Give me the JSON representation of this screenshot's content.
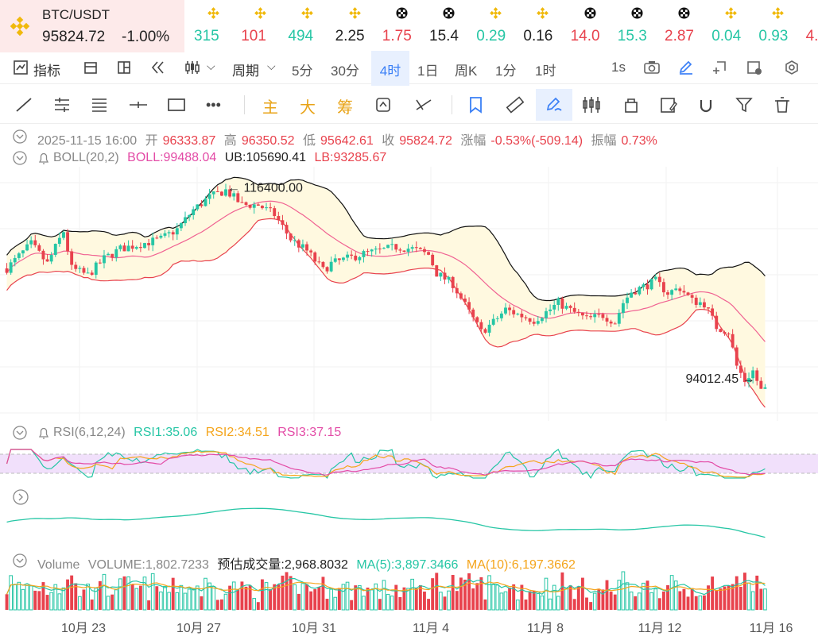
{
  "pair": {
    "name": "BTC/USDT",
    "price": "95824.72",
    "change": "-1.00%"
  },
  "ticker": [
    {
      "icon": "bnb-icon",
      "value": "315",
      "color": "#26c6a5"
    },
    {
      "icon": "bnb-icon",
      "value": "101",
      "color": "#e8424d"
    },
    {
      "icon": "bnb-icon",
      "value": "494",
      "color": "#26c6a5"
    },
    {
      "icon": "bnb-icon",
      "value": "2.25",
      "color": "#222222"
    },
    {
      "icon": "okx-icon",
      "value": "1.75",
      "color": "#e8424d"
    },
    {
      "icon": "okx-icon",
      "value": "15.4",
      "color": "#222222"
    },
    {
      "icon": "bnb-icon",
      "value": "0.29",
      "color": "#26c6a5"
    },
    {
      "icon": "bnb-icon",
      "value": "0.16",
      "color": "#222222"
    },
    {
      "icon": "okx-icon",
      "value": "14.0",
      "color": "#e8424d"
    },
    {
      "icon": "okx-icon",
      "value": "15.3",
      "color": "#26c6a5"
    },
    {
      "icon": "okx-icon",
      "value": "2.87",
      "color": "#e8424d"
    },
    {
      "icon": "bnb-icon",
      "value": "0.04",
      "color": "#26c6a5"
    },
    {
      "icon": "bnb-icon",
      "value": "0.93",
      "color": "#26c6a5"
    },
    {
      "icon": "bnb-icon",
      "value": "4.",
      "color": "#e8424d"
    }
  ],
  "toolbar": {
    "indicators": "指标",
    "period": "周期",
    "intervals": [
      "5分",
      "30分",
      "4时",
      "1日",
      "周K",
      "1分",
      "1时"
    ],
    "active_interval": "4时",
    "refresh": "1s"
  },
  "drawtools": {
    "main": "主",
    "big": "大",
    "chips": "筹"
  },
  "ohlc": {
    "time": "2025-11-15 16:00",
    "open_label": "开",
    "open": "96333.87",
    "high_label": "高",
    "high": "96350.52",
    "low_label": "低",
    "low": "95642.61",
    "close_label": "收",
    "close": "95824.72",
    "chg_label": "涨幅",
    "chg": "-0.53%(-509.14)",
    "amp_label": "振幅",
    "amp": "0.73%"
  },
  "boll": {
    "label": "BOLL(20,2)",
    "boll": "BOLL:99488.04",
    "ub": "UB:105690.41",
    "lb": "LB:93285.67"
  },
  "rsi": {
    "label": "RSI(6,12,24)",
    "rsi1": "RSI1:35.06",
    "rsi2": "RSI2:34.51",
    "rsi3": "RSI3:37.15"
  },
  "volume": {
    "label": "Volume",
    "vol": "VOLUME:1,802.7233",
    "est": "预估成交量:2,968.8032",
    "ma5": "MA(5):3,897.3466",
    "ma10": "MA(10):6,197.3662"
  },
  "colors": {
    "up": "#26c6a5",
    "down": "#e8424d",
    "boll_mid": "#f06292",
    "boll_upper": "#111111",
    "band_fill": "#fff9e0",
    "rsi1": "#26c6a5",
    "rsi2": "#f4a51c",
    "rsi3": "#e34ba6",
    "accent": "#3a7ff6"
  },
  "chart_data": {
    "type": "candlestick",
    "interval": "4时",
    "date_from": "2025-10-20",
    "date_to": "2025-11-15 16:00",
    "x_ticks": [
      "10月 23",
      "10月 27",
      "10月 31",
      "11月 4",
      "11月 8",
      "11月 12",
      "11月 16"
    ],
    "annotations": [
      {
        "text": "116400.00",
        "role": "period high"
      },
      {
        "text": "94012.45",
        "role": "period low"
      }
    ],
    "price_path": [
      [
        0,
        108000
      ],
      [
        6,
        110500
      ],
      [
        10,
        108500
      ],
      [
        14,
        111800
      ],
      [
        16,
        108000
      ],
      [
        20,
        107300
      ],
      [
        24,
        109000
      ],
      [
        28,
        110000
      ],
      [
        33,
        110500
      ],
      [
        38,
        111000
      ],
      [
        42,
        112000
      ],
      [
        46,
        114000
      ],
      [
        50,
        115300
      ],
      [
        54,
        116000
      ],
      [
        58,
        114500
      ],
      [
        62,
        114500
      ],
      [
        66,
        113500
      ],
      [
        70,
        111000
      ],
      [
        74,
        109800
      ],
      [
        78,
        107800
      ],
      [
        80,
        108500
      ],
      [
        84,
        109000
      ],
      [
        88,
        109500
      ],
      [
        93,
        109900
      ],
      [
        96,
        110200
      ],
      [
        100,
        110000
      ],
      [
        104,
        109400
      ],
      [
        106,
        107500
      ],
      [
        110,
        106400
      ],
      [
        114,
        103500
      ],
      [
        117,
        101500
      ],
      [
        120,
        102500
      ],
      [
        123,
        103800
      ],
      [
        126,
        103300
      ],
      [
        130,
        102700
      ],
      [
        134,
        103800
      ],
      [
        136,
        104500
      ],
      [
        139,
        103700
      ],
      [
        143,
        102800
      ],
      [
        147,
        103200
      ],
      [
        150,
        102500
      ],
      [
        152,
        104500
      ],
      [
        154,
        105600
      ],
      [
        158,
        106300
      ],
      [
        160,
        106700
      ],
      [
        163,
        105500
      ],
      [
        166,
        106000
      ],
      [
        169,
        104700
      ],
      [
        172,
        104400
      ],
      [
        175,
        102000
      ],
      [
        178,
        101500
      ],
      [
        180,
        98000
      ],
      [
        182,
        96500
      ],
      [
        184,
        97500
      ],
      [
        186,
        95500
      ],
      [
        187,
        95824.72
      ]
    ],
    "boll_last": {
      "mid": 99488.04,
      "upper": 105690.41,
      "lower": 93285.67
    },
    "rsi_last": {
      "rsi1": 35.06,
      "rsi2": 34.51,
      "rsi3": 37.15
    },
    "volume_last": {
      "volume": 1802.7233,
      "estimate": 2968.8032,
      "ma5": 3897.3466,
      "ma10": 6197.3662
    }
  }
}
